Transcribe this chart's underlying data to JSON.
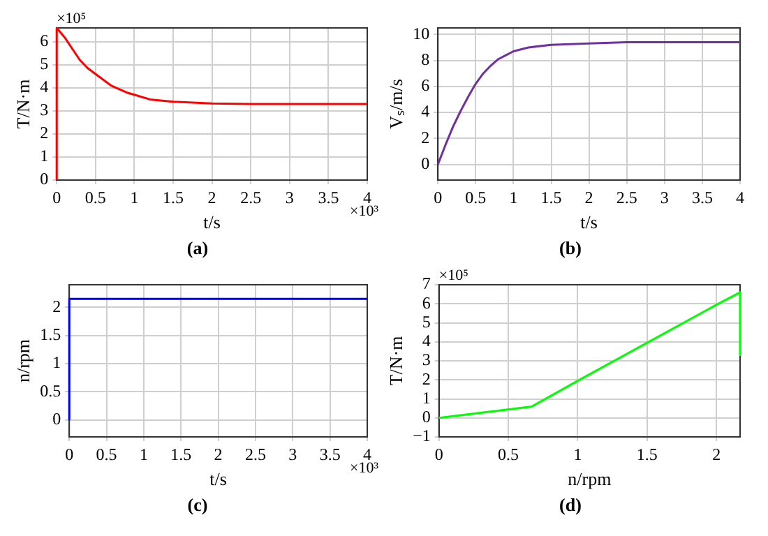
{
  "chart_data": [
    {
      "type": "line",
      "xlabel": "t/s",
      "ylabel": "T/N·m",
      "title": "(a)",
      "subtitle": "×10⁵",
      "annotations": [
        "×10³"
      ],
      "xlim": [
        0,
        4
      ],
      "ylim": [
        0,
        6.6
      ],
      "xticks": [
        0,
        0.5,
        1,
        1.5,
        2,
        2.5,
        3,
        3.5,
        4
      ],
      "yticks": [
        0,
        1,
        2,
        3,
        4,
        5,
        6
      ],
      "grid": true,
      "legend": false,
      "marker": "none",
      "line_style": "solid",
      "series": [
        {
          "color": "#ff0000",
          "x": [
            0,
            0,
            0.1,
            0.2,
            0.3,
            0.4,
            0.5,
            0.7,
            0.9,
            1,
            1.2,
            1.5,
            2,
            2.5,
            4
          ],
          "values": [
            0,
            6.6,
            6.2,
            5.7,
            5.2,
            4.85,
            4.6,
            4.1,
            3.8,
            3.7,
            3.5,
            3.4,
            3.32,
            3.3,
            3.3
          ]
        }
      ]
    },
    {
      "type": "line",
      "xlabel": "t/s",
      "ylabel": "Vₛ/m/s",
      "title": "(b)",
      "xlim": [
        0,
        4
      ],
      "ylim": [
        -1.2,
        10.5
      ],
      "xticks": [
        0,
        0.5,
        1,
        1.5,
        2,
        2.5,
        3,
        3.5,
        4
      ],
      "yticks": [
        0,
        2,
        4,
        6,
        8,
        10
      ],
      "grid": true,
      "legend": false,
      "marker": "none",
      "line_style": "solid",
      "series": [
        {
          "color": "#7030a0",
          "x": [
            0,
            0.1,
            0.2,
            0.3,
            0.4,
            0.5,
            0.6,
            0.7,
            0.8,
            0.9,
            1,
            1.2,
            1.5,
            2,
            2.5,
            4
          ],
          "values": [
            0,
            1.5,
            2.9,
            4.1,
            5.2,
            6.2,
            7,
            7.6,
            8.1,
            8.4,
            8.7,
            9,
            9.2,
            9.3,
            9.4,
            9.4
          ]
        }
      ]
    },
    {
      "type": "line",
      "xlabel": "t/s",
      "ylabel": "n/rpm",
      "title": "(c)",
      "annotations": [
        "×10³"
      ],
      "xlim": [
        0,
        4
      ],
      "ylim": [
        -0.3,
        2.4
      ],
      "xticks": [
        0,
        0.5,
        1,
        1.5,
        2,
        2.5,
        3,
        3.5,
        4
      ],
      "yticks": [
        0,
        0.5,
        1,
        1.5,
        2
      ],
      "grid": true,
      "legend": false,
      "marker": "none",
      "line_style": "solid",
      "series": [
        {
          "color": "#0000ff",
          "x": [
            0,
            0,
            1,
            2,
            3,
            4
          ],
          "values": [
            0,
            2.15,
            2.15,
            2.15,
            2.15,
            2.15
          ]
        }
      ]
    },
    {
      "type": "line",
      "xlabel": "n/rpm",
      "ylabel": "T/N·m",
      "title": "(d)",
      "subtitle": "×10⁵",
      "xlim": [
        0,
        2.17
      ],
      "ylim": [
        -1,
        7
      ],
      "xticks": [
        0,
        0.5,
        1,
        1.5,
        2
      ],
      "yticks": [
        {
          "value": -1,
          "label": "−1"
        },
        0,
        1,
        2,
        3,
        4,
        5,
        6,
        7
      ],
      "grid": true,
      "legend": false,
      "marker": "none",
      "line_style": "solid",
      "series": [
        {
          "color": "#00ff00",
          "x": [
            0,
            0.67,
            1,
            1.5,
            2,
            2.17,
            2.17
          ],
          "values": [
            0,
            0.6,
            1.95,
            3.95,
            5.95,
            6.6,
            3.3
          ]
        }
      ]
    }
  ]
}
